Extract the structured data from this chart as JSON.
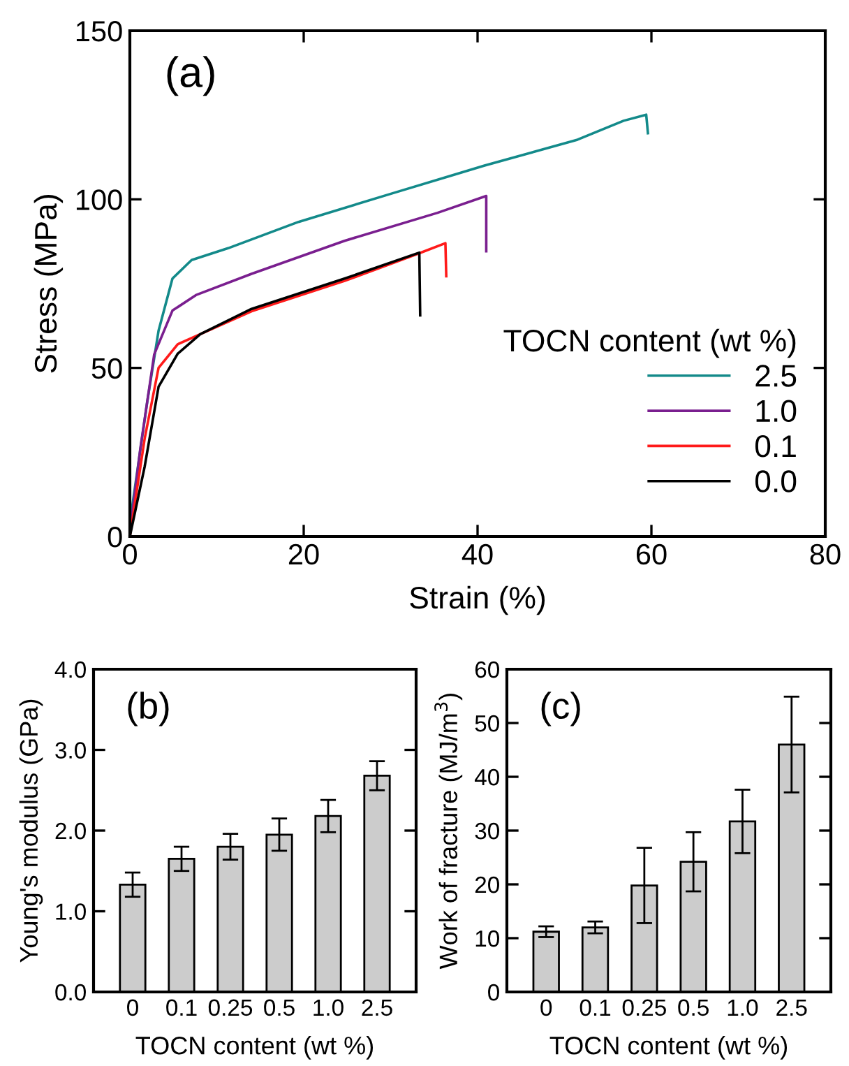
{
  "chart_data": [
    {
      "type": "line",
      "xlabel": "Strain (%)",
      "ylabel": "Stress (MPa)",
      "annotations": [
        "(a)"
      ],
      "legend_title": "TOCN content (wt %)",
      "legend": "bottom right",
      "grid": false,
      "xlim": [
        0,
        80
      ],
      "ylim": [
        0,
        150
      ],
      "xticks": [
        0,
        20,
        40,
        60,
        80
      ],
      "yticks": [
        0,
        50,
        100,
        150
      ],
      "series": [
        {
          "name": "2.5",
          "color": "#138a8a",
          "x": [
            0,
            1.0,
            2.0,
            3.3,
            4.9,
            7.1,
            11.3,
            19.4,
            30.1,
            40.8,
            51.5,
            56.8,
            59.4,
            59.6
          ],
          "values": [
            4,
            22,
            40,
            61,
            76.5,
            82,
            85.5,
            93.3,
            101.7,
            110,
            117.7,
            123.3,
            125.1,
            119.6
          ]
        },
        {
          "name": "1.0",
          "color": "#7a1f8f",
          "x": [
            0,
            1.2,
            2.8,
            4.9,
            7.6,
            14,
            24.7,
            35.4,
            41.0,
            41.0
          ],
          "values": [
            1,
            26,
            54,
            67,
            71.6,
            77.9,
            87.7,
            96,
            101,
            84.6
          ]
        },
        {
          "name": "0.1",
          "color": "#ff1a1a",
          "x": [
            0,
            1.7,
            3.3,
            5.5,
            8.1,
            14,
            24.7,
            33.3,
            36.3,
            36.4
          ],
          "values": [
            0,
            29,
            50,
            57,
            60,
            66.8,
            75.8,
            84,
            87,
            77.2
          ]
        },
        {
          "name": "0.0",
          "color": "#000000",
          "x": [
            0,
            1.7,
            3.3,
            5.5,
            8.1,
            14,
            24.7,
            33.3,
            33.4
          ],
          "values": [
            0,
            20.7,
            44.4,
            54.2,
            60,
            67.5,
            76.5,
            84.2,
            65.6
          ]
        }
      ]
    },
    {
      "type": "bar",
      "xlabel": "TOCN content (wt %)",
      "ylabel": "Young's modulus (GPa)",
      "annotations": [
        "(b)"
      ],
      "grid": false,
      "color": "#cccccc",
      "categories": [
        "0",
        "0.1",
        "0.25",
        "0.5",
        "1.0",
        "2.5"
      ],
      "ylim": [
        0,
        4
      ],
      "yticks": [
        {
          "value": 0,
          "label": "0.0"
        },
        {
          "value": 1,
          "label": "1.0"
        },
        {
          "value": 2,
          "label": "2.0"
        },
        {
          "value": 3,
          "label": "3.0"
        },
        {
          "value": 4,
          "label": "4.0"
        }
      ],
      "values": [
        1.33,
        1.65,
        1.8,
        1.95,
        2.18,
        2.68
      ],
      "errors": [
        0.15,
        0.15,
        0.16,
        0.2,
        0.2,
        0.18
      ]
    },
    {
      "type": "bar",
      "xlabel": "TOCN content (wt %)",
      "ylabel": "Work of fracture (MJ/m$^{3}$)",
      "annotations": [
        "(c)"
      ],
      "grid": false,
      "color": "#cccccc",
      "categories": [
        "0",
        "0.1",
        "0.25",
        "0.5",
        "1.0",
        "2.5"
      ],
      "ylim": [
        0,
        60
      ],
      "yticks": [
        0,
        10,
        20,
        30,
        40,
        50,
        60
      ],
      "values": [
        11.2,
        12,
        19.8,
        24.2,
        31.7,
        46
      ],
      "errors": [
        1,
        1.1,
        7,
        5.5,
        5.9,
        8.9
      ]
    }
  ]
}
